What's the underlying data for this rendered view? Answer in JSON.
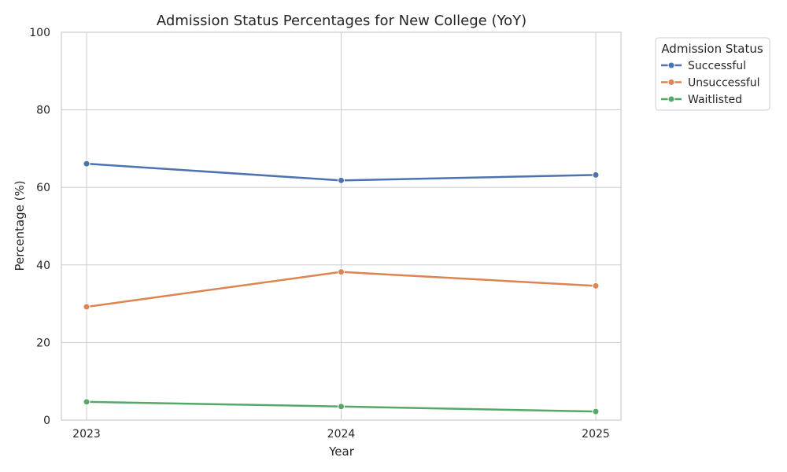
{
  "chart_data": {
    "type": "line",
    "title": "Admission Status Percentages for New College (YoY)",
    "xlabel": "Year",
    "ylabel": "Percentage (%)",
    "x": [
      "2023",
      "2024",
      "2025"
    ],
    "ylim": [
      0,
      100
    ],
    "yticks": [
      "0",
      "20",
      "40",
      "60",
      "80",
      "100"
    ],
    "grid": true,
    "legend": {
      "title": "Admission Status",
      "placement": "outside-top-right"
    },
    "series": [
      {
        "name": "Successful",
        "color": "#4c72b0",
        "values": [
          66.1,
          61.8,
          63.2
        ]
      },
      {
        "name": "Unsuccessful",
        "color": "#dd8452",
        "values": [
          29.2,
          38.2,
          34.6
        ]
      },
      {
        "name": "Waitlisted",
        "color": "#55a868",
        "values": [
          4.7,
          3.5,
          2.2
        ]
      }
    ]
  }
}
